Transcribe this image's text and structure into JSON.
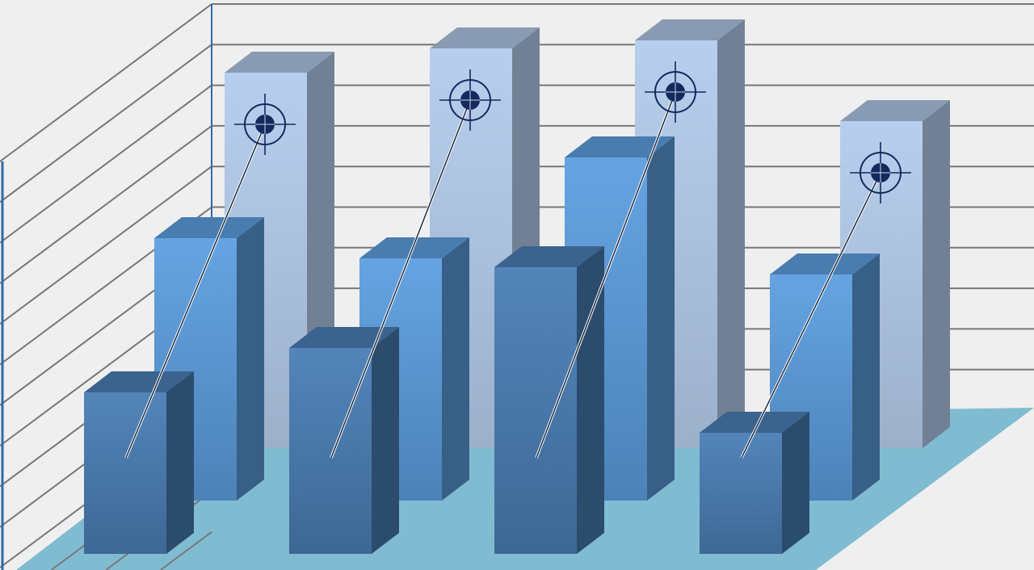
{
  "chart_data": {
    "type": "bar",
    "style": "3d-grouped",
    "title": "",
    "xlabel": "",
    "ylabel": "",
    "grid": true,
    "categories": [
      "",
      "",
      "",
      ""
    ],
    "series": [
      {
        "values": [
          9.3,
          9.9,
          10.1,
          8.1
        ],
        "row": "back",
        "marker": "target-icon"
      },
      {
        "values": [
          6.5,
          6.0,
          8.5,
          5.6
        ],
        "row": "middle"
      },
      {
        "values": [
          4.0,
          5.1,
          7.1,
          3.0
        ],
        "row": "front"
      }
    ],
    "colors": {
      "back": "#b7cfee",
      "middle": "#5d9fe0",
      "front": "#4a7fb6",
      "floor": "#80bcd1",
      "wall": "#efefef",
      "grid": "#777777",
      "axis": "#2f6aa8",
      "target": "#14295e"
    }
  }
}
